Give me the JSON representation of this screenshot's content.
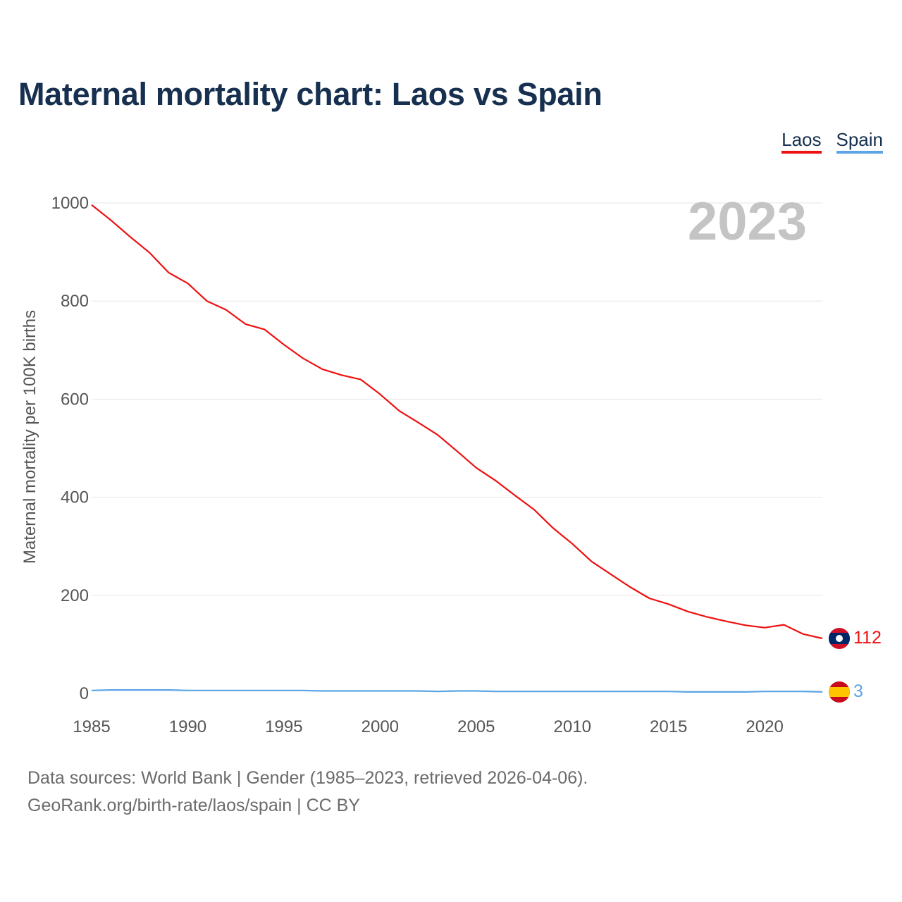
{
  "title": "Maternal mortality chart: Laos vs Spain",
  "legend": [
    {
      "label": "Laos",
      "color": "#ee1111"
    },
    {
      "label": "Spain",
      "color": "#5ba4e6"
    }
  ],
  "year_watermark": "2023",
  "footer": {
    "line1": "Data sources: World Bank | Gender (1985–2023, retrieved 2026-04-06).",
    "line2": "GeoRank.org/birth-rate/laos/spain | CC BY"
  },
  "chart_data": {
    "type": "line",
    "title": "Maternal mortality chart: Laos vs Spain",
    "xlabel": "",
    "ylabel": "Maternal mortality per 100K births",
    "xlim": [
      1985,
      2023
    ],
    "ylim": [
      0,
      1000
    ],
    "x_ticks": [
      1985,
      1990,
      1995,
      2000,
      2005,
      2010,
      2015,
      2020
    ],
    "y_ticks": [
      0,
      200,
      400,
      600,
      800,
      1000
    ],
    "grid": true,
    "x": [
      1985,
      1986,
      1987,
      1988,
      1989,
      1990,
      1991,
      1992,
      1993,
      1994,
      1995,
      1996,
      1997,
      1998,
      1999,
      2000,
      2001,
      2002,
      2003,
      2004,
      2005,
      2006,
      2007,
      2008,
      2009,
      2010,
      2011,
      2012,
      2013,
      2014,
      2015,
      2016,
      2017,
      2018,
      2019,
      2020,
      2021,
      2022,
      2023
    ],
    "series": [
      {
        "name": "Laos",
        "color": "#ee1111",
        "end_label": "112",
        "flag": "laos-flag",
        "values": [
          996,
          965,
          931,
          899,
          858,
          836,
          800,
          782,
          753,
          742,
          711,
          683,
          661,
          649,
          640,
          610,
          576,
          552,
          527,
          494,
          460,
          434,
          404,
          375,
          337,
          305,
          269,
          243,
          217,
          194,
          182,
          167,
          156,
          147,
          139,
          134,
          140,
          121,
          112
        ]
      },
      {
        "name": "Spain",
        "color": "#5ba4e6",
        "end_label": "3",
        "flag": "spain-flag",
        "values": [
          6,
          7,
          7,
          7,
          7,
          6,
          6,
          6,
          6,
          6,
          6,
          6,
          5,
          5,
          5,
          5,
          5,
          5,
          4,
          5,
          5,
          4,
          4,
          4,
          4,
          4,
          4,
          4,
          4,
          4,
          4,
          3,
          3,
          3,
          3,
          4,
          4,
          4,
          3
        ]
      }
    ]
  }
}
